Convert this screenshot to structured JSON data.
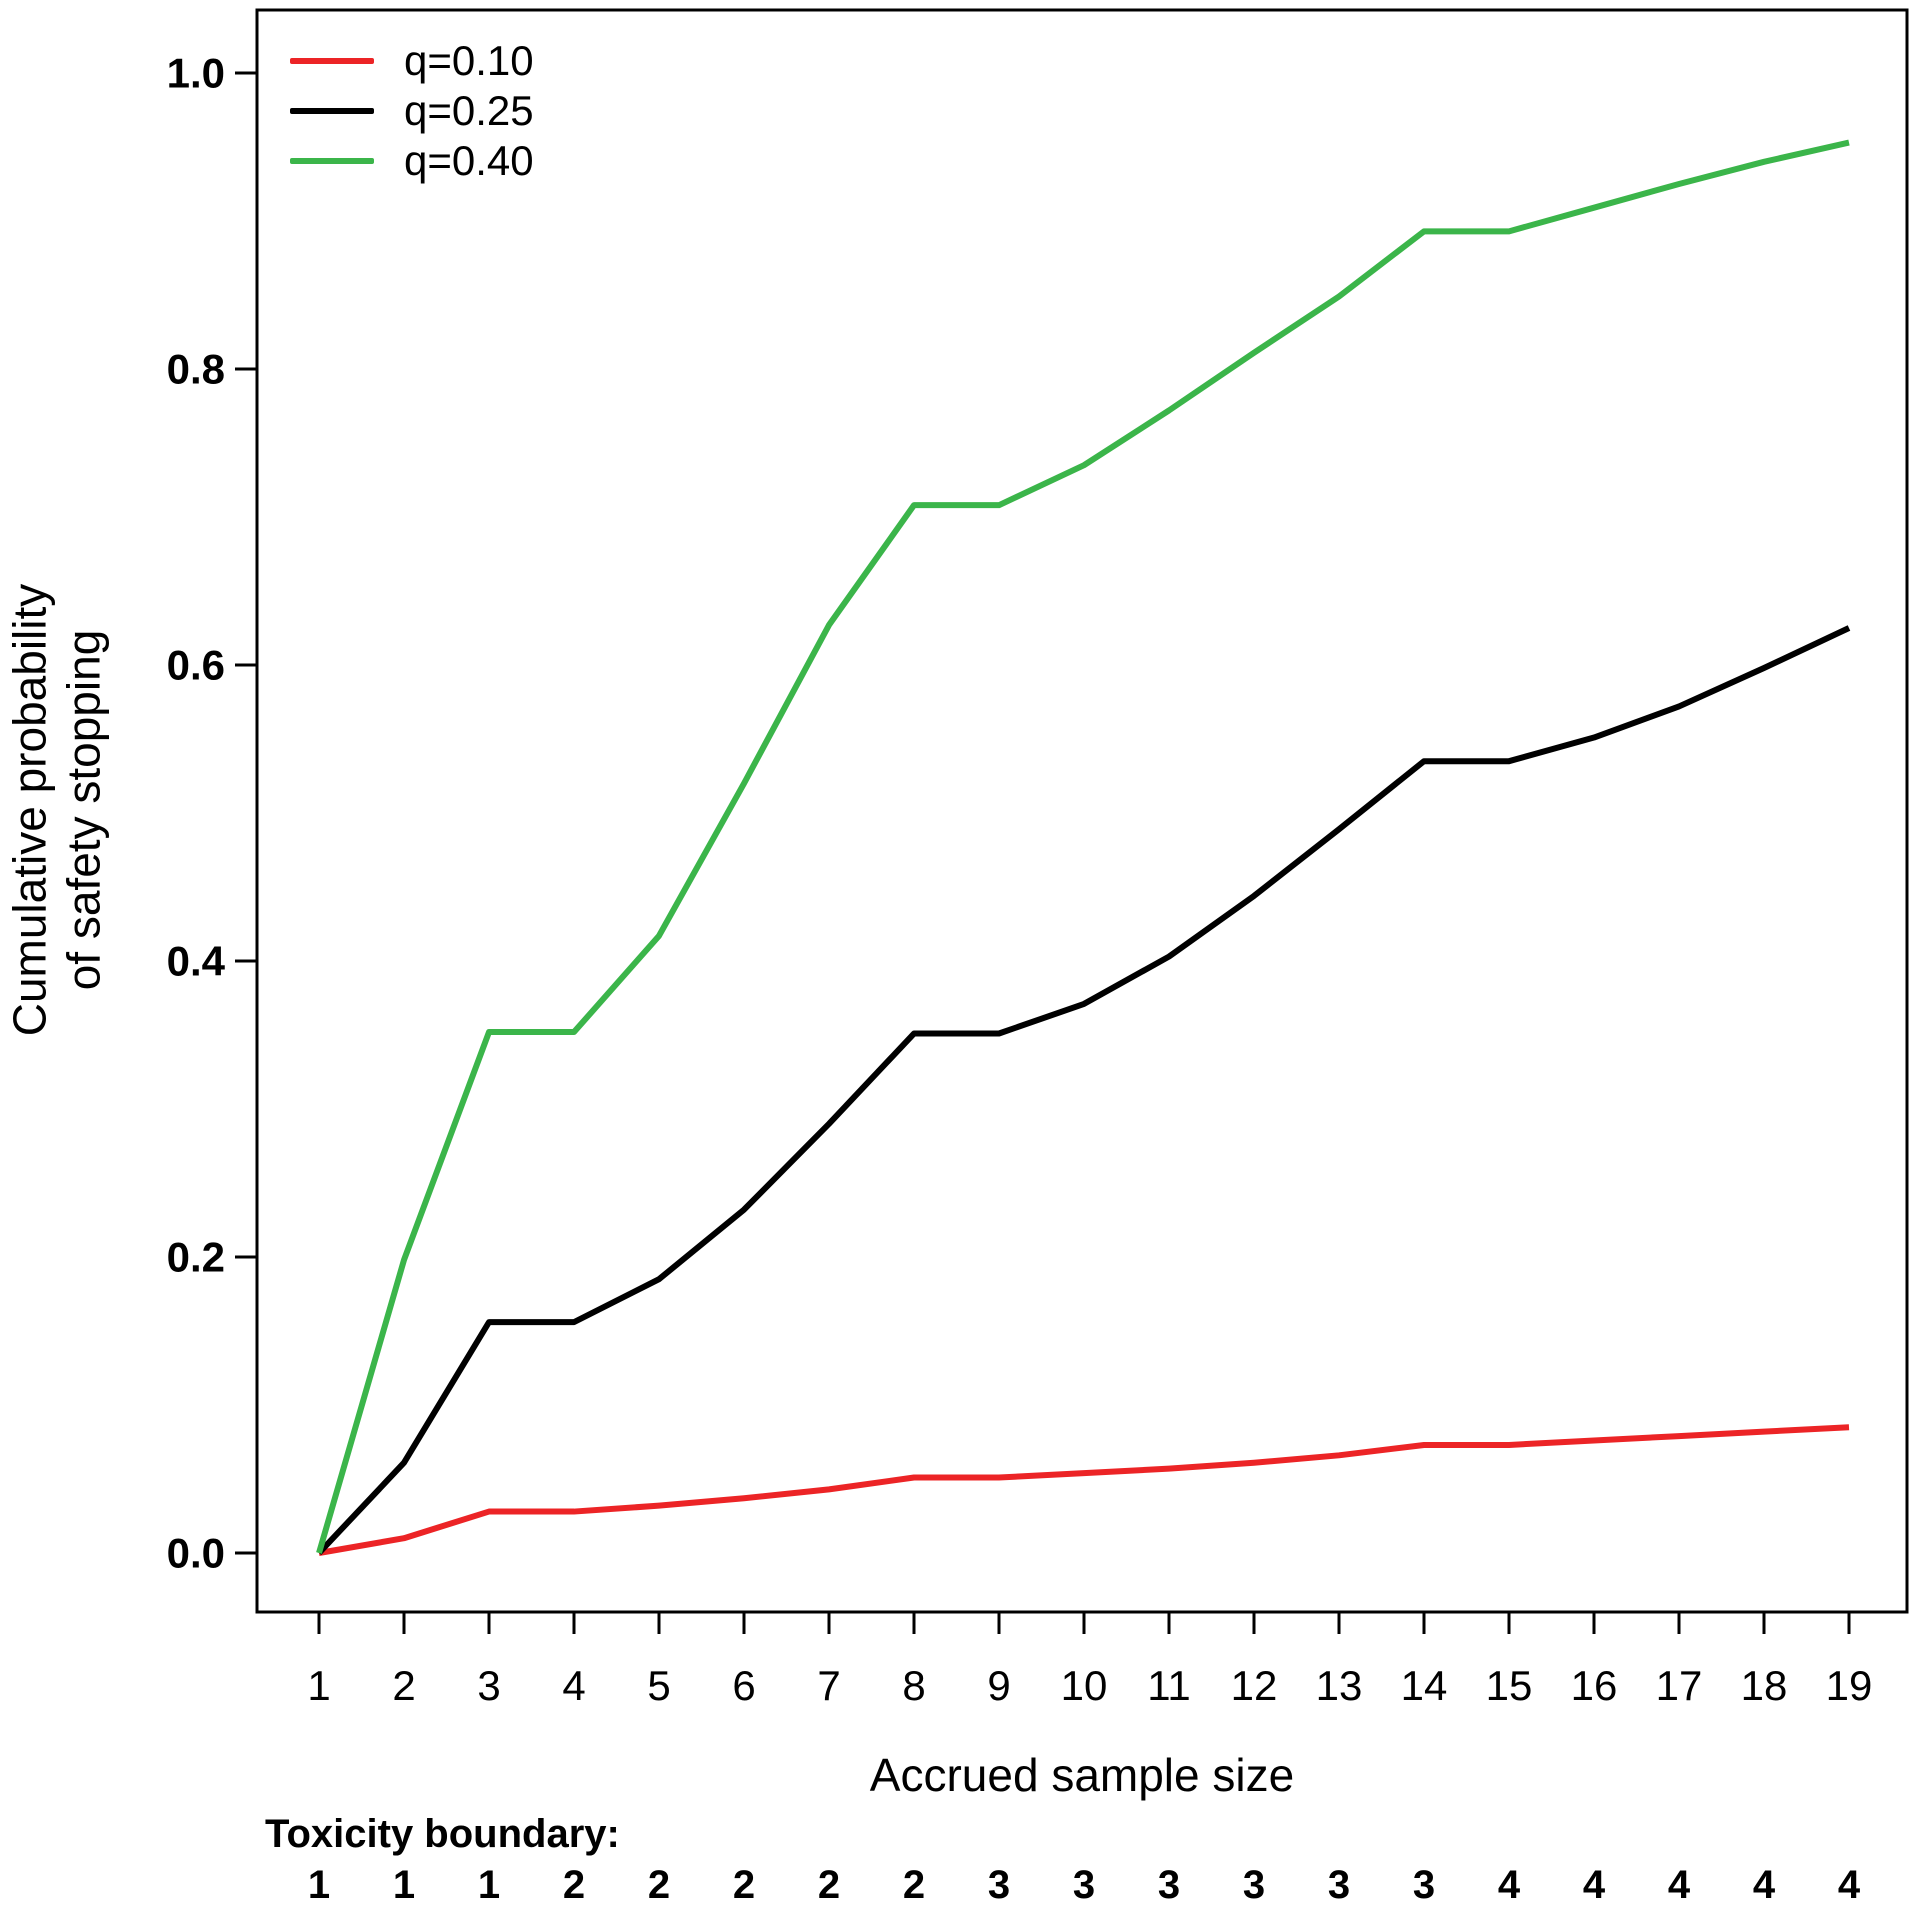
{
  "figure": {
    "y_axis_title_line1": "Cumulative probability",
    "y_axis_title_line2": "of safety stopping",
    "x_axis_title": "Accrued sample size",
    "toxicity_boundary_label": "Toxicity boundary:"
  },
  "chart_data": {
    "type": "line",
    "title": "",
    "xlabel": "Accrued sample size",
    "ylabel": "Cumulative probability of safety stopping",
    "xlim": [
      1,
      19
    ],
    "ylim": [
      0.0,
      1.0
    ],
    "grid": false,
    "legend_position": "top-left",
    "x": [
      1,
      2,
      3,
      4,
      5,
      6,
      7,
      8,
      9,
      10,
      11,
      12,
      13,
      14,
      15,
      16,
      17,
      18,
      19
    ],
    "x_tick_labels": [
      "1",
      "2",
      "3",
      "4",
      "5",
      "6",
      "7",
      "8",
      "9",
      "10",
      "11",
      "12",
      "13",
      "14",
      "15",
      "16",
      "17",
      "18",
      "19"
    ],
    "y_ticks": [
      0.0,
      0.2,
      0.4,
      0.6,
      0.8,
      1.0
    ],
    "y_tick_labels": [
      "0.0",
      "0.2",
      "0.4",
      "0.6",
      "0.8",
      "1.0"
    ],
    "series": [
      {
        "name": "q=0.10",
        "color": "#EC2426",
        "values": [
          0,
          0.01,
          0.028,
          0.028,
          0.032,
          0.037,
          0.043,
          0.051,
          0.051,
          0.054,
          0.057,
          0.061,
          0.066,
          0.073,
          0.073,
          0.076,
          0.079,
          0.082,
          0.085
        ]
      },
      {
        "name": "q=0.25",
        "color": "#000000",
        "values": [
          0,
          0.061,
          0.156,
          0.156,
          0.185,
          0.232,
          0.29,
          0.351,
          0.351,
          0.371,
          0.403,
          0.444,
          0.489,
          0.535,
          0.535,
          0.551,
          0.572,
          0.598,
          0.625
        ]
      },
      {
        "name": "q=0.40",
        "color": "#3BB54A",
        "values": [
          0,
          0.198,
          0.352,
          0.352,
          0.417,
          0.52,
          0.627,
          0.708,
          0.708,
          0.735,
          0.772,
          0.811,
          0.849,
          0.893,
          0.893,
          0.909,
          0.925,
          0.94,
          0.953
        ]
      }
    ],
    "toxicity_boundary": [
      "1",
      "1",
      "1",
      "2",
      "2",
      "2",
      "2",
      "2",
      "3",
      "3",
      "3",
      "3",
      "3",
      "3",
      "4",
      "4",
      "4",
      "4",
      "4"
    ]
  }
}
